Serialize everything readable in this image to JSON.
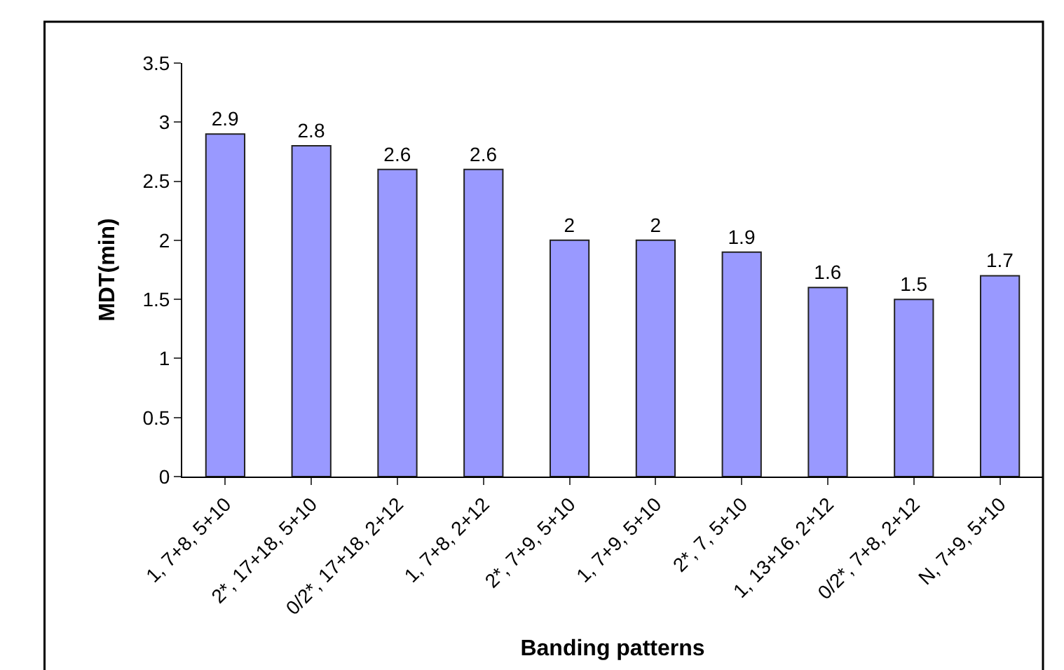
{
  "chart_data": {
    "type": "bar",
    "xlabel": "Banding patterns",
    "ylabel": "MDT(min)",
    "categories": [
      "1, 7+8, 5+10",
      "2*, 17+18, 5+10",
      "0/2*, 17+18, 2+12",
      "1, 7+8, 2+12",
      "2*, 7+9, 5+10",
      "1, 7+9, 5+10",
      "2*, 7, 5+10",
      "1, 13+16, 2+12",
      "0/2*, 7+8, 2+12",
      "N, 7+9, 5+10"
    ],
    "values": [
      2.9,
      2.8,
      2.6,
      2.6,
      2,
      2,
      1.9,
      1.6,
      1.5,
      1.7
    ],
    "color": "#9999ff",
    "data_labels": true,
    "grid": false,
    "legend": false,
    "ylim": [
      0,
      3.5
    ],
    "yticks": [
      0,
      0.5,
      1,
      1.5,
      2,
      2.5,
      3,
      3.5
    ]
  }
}
